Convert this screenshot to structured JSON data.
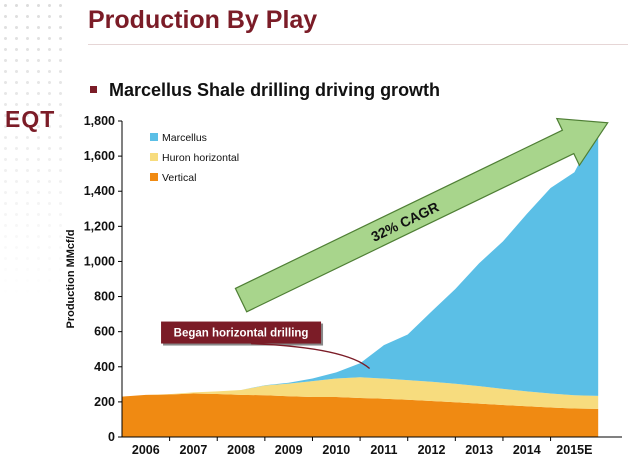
{
  "slide": {
    "title": "Production By Play",
    "bullet": "Marcellus Shale drilling driving growth",
    "logo_text": "EQT"
  },
  "colors": {
    "brand": "#7b1c27",
    "marcellus": "#5bbfe6",
    "huron": "#f7dc7e",
    "vertical": "#f08a12",
    "arrow": "#a8d58c"
  },
  "chart_data": {
    "type": "area",
    "stacked": true,
    "title": "",
    "xlabel": "",
    "ylabel": "Production MMcf/d",
    "ylim": [
      0,
      1800
    ],
    "yticks": [
      0,
      200,
      400,
      600,
      800,
      1000,
      1200,
      1400,
      1600,
      1800
    ],
    "ytick_labels": [
      "0",
      "200",
      "400",
      "600",
      "800",
      "1,000",
      "1,200",
      "1,400",
      "1,600",
      "1,800"
    ],
    "categories": [
      "2006",
      "2007",
      "2008",
      "2009",
      "2010",
      "2011",
      "2012",
      "2013",
      "2014",
      "2015E"
    ],
    "x": [
      2005.5,
      2006,
      2006.5,
      2007,
      2007.5,
      2008,
      2008.5,
      2009,
      2009.5,
      2010,
      2010.5,
      2011,
      2011.5,
      2012,
      2012.5,
      2013,
      2013.5,
      2014,
      2014.5,
      2015,
      2015.5
    ],
    "series": [
      {
        "name": "Vertical",
        "color": "#f08a12",
        "values": [
          230,
          240,
          242,
          248,
          245,
          240,
          238,
          232,
          228,
          228,
          222,
          218,
          212,
          205,
          198,
          190,
          182,
          175,
          168,
          162,
          160
        ]
      },
      {
        "name": "Huron horizontal",
        "color": "#f7dc7e",
        "values": [
          0,
          0,
          2,
          6,
          15,
          28,
          55,
          72,
          90,
          105,
          118,
          115,
          112,
          110,
          105,
          100,
          92,
          85,
          80,
          76,
          74
        ]
      },
      {
        "name": "Marcellus",
        "color": "#5bbfe6",
        "values": [
          0,
          0,
          0,
          0,
          0,
          0,
          2,
          5,
          15,
          35,
          80,
          190,
          260,
          400,
          540,
          700,
          840,
          1010,
          1170,
          1270,
          1530
        ]
      }
    ],
    "legend": {
      "position": "top-left",
      "order": [
        "Marcellus",
        "Huron horizontal",
        "Vertical"
      ]
    },
    "annotations": [
      {
        "text": "Began horizontal drilling",
        "type": "callout-box",
        "x": 2008,
        "y": 595
      },
      {
        "text": "32% CAGR",
        "type": "arrow",
        "from": [
          2008,
          780
        ],
        "to": [
          2015.7,
          1790
        ]
      }
    ],
    "grid": false
  }
}
